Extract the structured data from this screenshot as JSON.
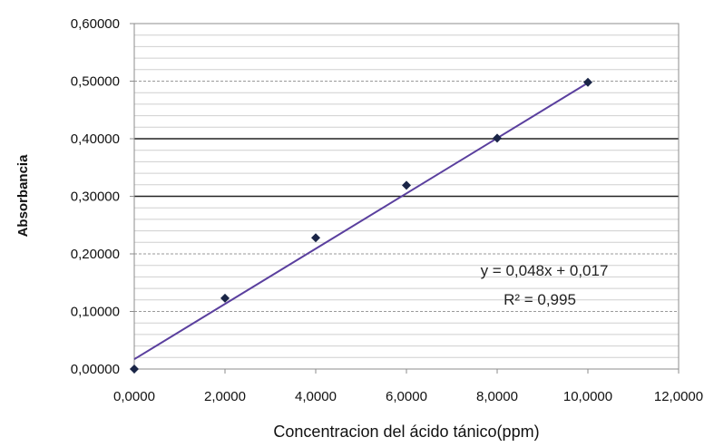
{
  "chart_data": {
    "type": "scatter",
    "xlabel": "Concentracion del ácido tánico(ppm)",
    "ylabel": "Absorbancia",
    "xlim": [
      0,
      12
    ],
    "ylim": [
      0,
      0.6
    ],
    "x_ticks": [
      0,
      2,
      4,
      6,
      8,
      10,
      12
    ],
    "y_ticks": [
      0,
      0.1,
      0.2,
      0.3,
      0.4,
      0.5,
      0.6
    ],
    "x_tick_labels": [
      "0,0000",
      "2,0000",
      "4,0000",
      "6,0000",
      "8,0000",
      "10,0000",
      "12,0000"
    ],
    "y_tick_labels": [
      "0,00000",
      "0,10000",
      "0,20000",
      "0,30000",
      "0,40000",
      "0,50000",
      "0,60000"
    ],
    "series": [
      {
        "x": [
          0,
          2,
          4,
          6,
          8,
          10
        ],
        "y": [
          0.0,
          0.123,
          0.228,
          0.319,
          0.401,
          0.498
        ]
      }
    ],
    "trendline": {
      "slope": 0.048,
      "intercept": 0.017,
      "x_range": [
        0,
        10
      ],
      "equation": "y = 0,048x + 0,017",
      "r2": "R² = 0,995"
    },
    "grid": true,
    "colors": {
      "markers": "#1a2547",
      "trendline": "#5a3f9e",
      "grid_minor": "#cfcfcf",
      "grid_major": "#222222",
      "border": "#8c8c8c"
    }
  }
}
